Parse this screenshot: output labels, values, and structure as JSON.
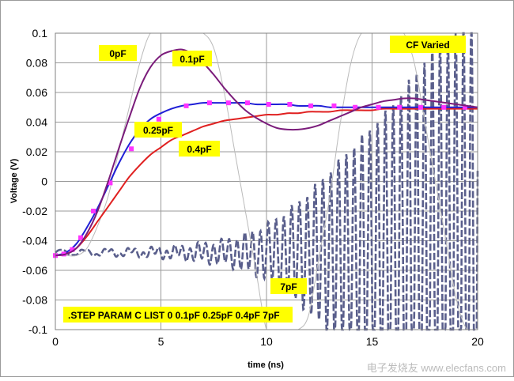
{
  "chart_data": {
    "type": "line",
    "title": "CF Varied",
    "xlabel": "time (ns)",
    "ylabel": "Voltage (V)",
    "xlim": [
      0,
      20
    ],
    "ylim": [
      -0.1,
      0.1
    ],
    "x_ticks": [
      0,
      5,
      10,
      15,
      20
    ],
    "y_ticks": [
      -0.1,
      -0.08,
      -0.06,
      -0.04,
      -0.02,
      0,
      0.02,
      0.04,
      0.06,
      0.08,
      0.1
    ],
    "x_tick_labels": [
      "0",
      "5",
      "10",
      "15",
      "20"
    ],
    "y_tick_labels": [
      "-0.1",
      "-0.08",
      "-0.06",
      "-0.04",
      "-0.02",
      "0",
      "0.02",
      "0.04",
      "0.06",
      "0.08",
      "0.1"
    ],
    "grid": true,
    "annotation": ".STEP PARAM C LIST 0 0.1pF 0.25pF 0.4pF 7pF",
    "series": [
      {
        "name": "0pF",
        "color": "#bbbbbb",
        "style": "thin-faint",
        "x": [
          0,
          0.5,
          1.0,
          1.5,
          2.0,
          2.5,
          3.0,
          3.5,
          4.0,
          4.5,
          5.0,
          5.5,
          6.0,
          6.5,
          7.0,
          7.5,
          8.0,
          8.5,
          9.0,
          9.5,
          10.0,
          10.5,
          11.0,
          11.5,
          12.0,
          12.5,
          13.0,
          13.5,
          14.0,
          14.5,
          15.0,
          15.5,
          16.0,
          16.5,
          17.0,
          17.5,
          18.0,
          18.5,
          19.0,
          19.5,
          20.0
        ],
        "y": [
          -0.05,
          -0.05,
          -0.05,
          -0.045,
          -0.03,
          -0.01,
          0.02,
          0.05,
          0.08,
          0.1,
          0.1,
          0.1,
          0.1,
          0.1,
          0.1,
          0.09,
          0.06,
          0.02,
          -0.02,
          -0.06,
          -0.1,
          -0.1,
          -0.1,
          -0.1,
          -0.09,
          -0.05,
          -0.01,
          0.04,
          0.08,
          0.1,
          0.1,
          0.1,
          0.1,
          0.1,
          0.08,
          0.04,
          0.0,
          -0.04,
          -0.08,
          -0.1,
          -0.1
        ]
      },
      {
        "name": "0.1pF",
        "color": "#7b1c7b",
        "x": [
          0,
          0.5,
          1.0,
          1.5,
          2.0,
          2.5,
          3.0,
          3.5,
          4.0,
          4.5,
          5.0,
          5.5,
          6.0,
          6.5,
          7.0,
          7.5,
          8.0,
          8.5,
          9.0,
          9.5,
          10.0,
          10.5,
          11.0,
          11.5,
          12.0,
          12.5,
          13.0,
          13.5,
          14.0,
          14.5,
          15.0,
          15.5,
          16.0,
          16.5,
          17.0,
          17.5,
          18.0,
          18.5,
          19.0,
          19.5,
          20.0
        ],
        "y": [
          -0.05,
          -0.049,
          -0.045,
          -0.035,
          -0.02,
          0.0,
          0.022,
          0.043,
          0.063,
          0.077,
          0.085,
          0.088,
          0.089,
          0.086,
          0.08,
          0.072,
          0.063,
          0.055,
          0.048,
          0.043,
          0.039,
          0.036,
          0.035,
          0.035,
          0.036,
          0.038,
          0.041,
          0.044,
          0.047,
          0.05,
          0.052,
          0.054,
          0.055,
          0.056,
          0.056,
          0.055,
          0.054,
          0.053,
          0.052,
          0.051,
          0.05
        ]
      },
      {
        "name": "0.25pF",
        "color": "#1f1fd6",
        "marker_color": "#ff33ff",
        "x": [
          0,
          0.5,
          1.0,
          1.5,
          2.0,
          2.5,
          3.0,
          3.5,
          4.0,
          4.5,
          5.0,
          5.5,
          6.0,
          6.5,
          7.0,
          7.5,
          8.0,
          8.5,
          9.0,
          9.5,
          10.0,
          10.5,
          11.0,
          11.5,
          12.0,
          12.5,
          13.0,
          13.5,
          14.0,
          14.5,
          15.0,
          15.5,
          16.0,
          16.5,
          17.0,
          17.5,
          18.0,
          18.5,
          19.0,
          19.5,
          20.0
        ],
        "y": [
          -0.05,
          -0.048,
          -0.042,
          -0.031,
          -0.018,
          -0.003,
          0.012,
          0.025,
          0.035,
          0.042,
          0.046,
          0.049,
          0.051,
          0.052,
          0.053,
          0.053,
          0.053,
          0.053,
          0.053,
          0.052,
          0.052,
          0.052,
          0.052,
          0.051,
          0.051,
          0.051,
          0.05,
          0.05,
          0.05,
          0.05,
          0.05,
          0.05,
          0.05,
          0.05,
          0.05,
          0.05,
          0.05,
          0.05,
          0.05,
          0.05,
          0.05
        ],
        "markers_x": [
          0,
          0.4,
          0.8,
          1.2,
          1.8,
          2.6,
          3.6,
          4.9,
          6.2,
          7.3,
          8.2,
          9.1,
          10.1,
          11.1,
          12.1,
          13.2,
          14.2,
          15.3,
          16.3,
          17.3,
          18.4,
          19.4
        ],
        "markers_y": [
          -0.05,
          -0.049,
          -0.046,
          -0.038,
          -0.02,
          -0.001,
          0.022,
          0.042,
          0.051,
          0.053,
          0.053,
          0.053,
          0.052,
          0.052,
          0.051,
          0.051,
          0.05,
          0.05,
          0.05,
          0.05,
          0.05,
          0.05
        ]
      },
      {
        "name": "0.4pF",
        "color": "#e02020",
        "x": [
          0,
          0.5,
          1.0,
          1.5,
          2.0,
          2.5,
          3.0,
          3.5,
          4.0,
          4.5,
          5.0,
          5.5,
          6.0,
          6.5,
          7.0,
          7.5,
          8.0,
          8.5,
          9.0,
          9.5,
          10.0,
          10.5,
          11.0,
          11.5,
          12.0,
          12.5,
          13.0,
          13.5,
          14.0,
          14.5,
          15.0,
          15.5,
          16.0,
          16.5,
          17.0,
          17.5,
          18.0,
          18.5,
          19.0,
          19.5,
          20.0
        ],
        "y": [
          -0.05,
          -0.049,
          -0.045,
          -0.037,
          -0.027,
          -0.017,
          -0.007,
          0.003,
          0.011,
          0.018,
          0.023,
          0.028,
          0.031,
          0.034,
          0.037,
          0.039,
          0.041,
          0.042,
          0.043,
          0.044,
          0.045,
          0.045,
          0.046,
          0.046,
          0.047,
          0.047,
          0.047,
          0.048,
          0.048,
          0.048,
          0.048,
          0.049,
          0.049,
          0.049,
          0.049,
          0.049,
          0.049,
          0.049,
          0.049,
          0.049,
          0.049
        ]
      },
      {
        "name": "7pF",
        "color": "#5a5f8c",
        "style": "oscillating-dashed",
        "envelope_t": [
          0,
          2,
          4,
          6,
          8,
          9,
          10,
          11,
          12,
          13,
          14,
          15,
          16,
          17,
          18,
          19,
          20
        ],
        "envelope_amp": [
          0.0,
          0.001,
          0.002,
          0.004,
          0.008,
          0.012,
          0.018,
          0.028,
          0.04,
          0.055,
          0.07,
          0.085,
          0.1,
          0.12,
          0.14,
          0.15,
          0.16
        ],
        "center": -0.048,
        "period_ns": 0.37
      }
    ],
    "labels": [
      {
        "text": "0pF"
      },
      {
        "text": "0.1pF"
      },
      {
        "text": "0.25pF"
      },
      {
        "text": "0.4pF"
      },
      {
        "text": "7pF"
      }
    ]
  },
  "watermark": "电子发烧友 www.elecfans.com"
}
